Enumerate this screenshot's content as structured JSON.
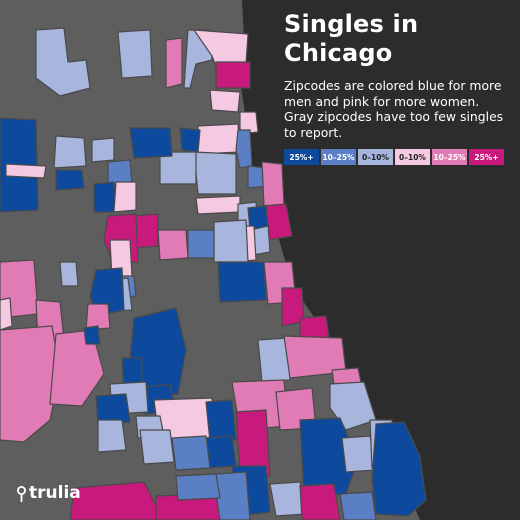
{
  "header": {
    "title_line1": "Singles in",
    "title_line2": "Chicago"
  },
  "description": "Zipcodes are colored blue for more men and pink for more women. Gray zipcodes have too few singles to report.",
  "legend": [
    {
      "label": "25%+",
      "color": "#0d4a9e",
      "text_color": "#ffffff"
    },
    {
      "label": "10–25%",
      "color": "#5a7fc4",
      "text_color": "#ffffff"
    },
    {
      "label": "0–10%",
      "color": "#a8b6de",
      "text_color": "#1e1e1e"
    },
    {
      "label": "0–10%",
      "color": "#f6c9e3",
      "text_color": "#1e1e1e"
    },
    {
      "label": "10–25%",
      "color": "#e07bb6",
      "text_color": "#ffffff"
    },
    {
      "label": "25%+",
      "color": "#c81a7c",
      "text_color": "#ffffff"
    }
  ],
  "colors": {
    "background": "#2c2c2c",
    "land": "#5e5e5e",
    "border": "#4a4a4a",
    "text": "#ffffff",
    "men_25_plus": "#0d4a9e",
    "men_10_25": "#5a7fc4",
    "men_0_10": "#a8b6de",
    "women_0_10": "#f6c9e3",
    "women_10_25": "#e07bb6",
    "women_25_plus": "#c81a7c"
  },
  "logo": {
    "icon": "trulia-pin-icon",
    "text": "trulia"
  }
}
